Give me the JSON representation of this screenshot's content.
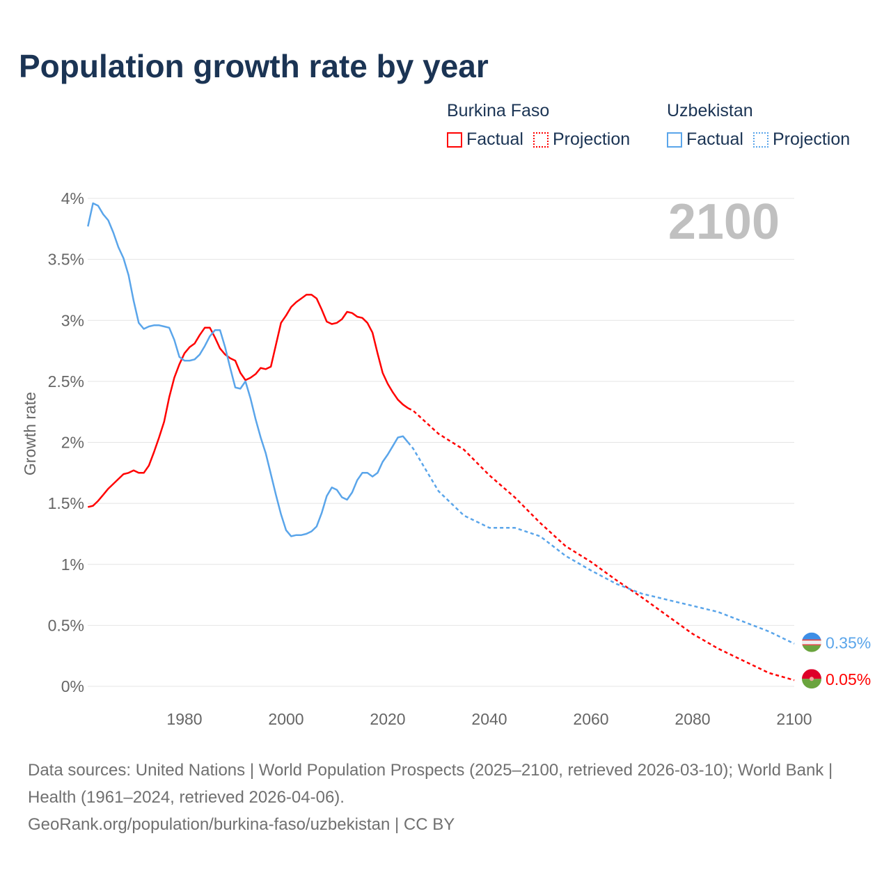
{
  "title": "Population growth rate by year",
  "legend": {
    "groups": [
      {
        "name": "Burkina Faso",
        "color": "#ff0000",
        "factual": "Factual",
        "projection": "Projection"
      },
      {
        "name": "Uzbekistan",
        "color": "#5aa5ea",
        "factual": "Factual",
        "projection": "Projection"
      }
    ]
  },
  "year_display": "2100",
  "end_labels": [
    "0.05%",
    "0.35%"
  ],
  "footer": {
    "line1": "Data sources: United Nations | World Population Prospects (2025–2100, retrieved 2026-03-10); World Bank | Health (1961–2024, retrieved 2026-04-06).",
    "line2": "GeoRank.org/population/burkina-faso/uzbekistan | CC BY"
  },
  "chart_data": {
    "type": "line",
    "title": "Population growth rate by year",
    "xlabel": "",
    "ylabel": "Growth rate",
    "xlim": [
      1961,
      2100
    ],
    "ylim": [
      0,
      4
    ],
    "xticks": [
      1980,
      2000,
      2020,
      2040,
      2060,
      2080,
      2100
    ],
    "yticks": [
      "0%",
      "0.5%",
      "1%",
      "1.5%",
      "2%",
      "2.5%",
      "3%",
      "3.5%",
      "4%"
    ],
    "grid": true,
    "legend_position": "top-right",
    "series": [
      {
        "name": "Burkina Faso",
        "color": "#ff0000",
        "factual_start": 1961,
        "factual": [
          1.47,
          1.48,
          1.52,
          1.57,
          1.62,
          1.66,
          1.7,
          1.74,
          1.75,
          1.77,
          1.75,
          1.75,
          1.81,
          1.92,
          2.04,
          2.17,
          2.37,
          2.53,
          2.64,
          2.73,
          2.78,
          2.81,
          2.88,
          2.94,
          2.94,
          2.86,
          2.77,
          2.72,
          2.69,
          2.67,
          2.57,
          2.51,
          2.53,
          2.56,
          2.61,
          2.6,
          2.62,
          2.8,
          2.98,
          3.04,
          3.11,
          3.15,
          3.18,
          3.21,
          3.21,
          3.18,
          3.09,
          2.99,
          2.97,
          2.98,
          3.01,
          3.07,
          3.06,
          3.03,
          3.02,
          2.98,
          2.9,
          2.73,
          2.57,
          2.48,
          2.41,
          2.35,
          2.31,
          2.28
        ],
        "projection_x": [
          2024,
          2025,
          2030,
          2035,
          2040,
          2045,
          2050,
          2055,
          2060,
          2065,
          2070,
          2075,
          2080,
          2085,
          2090,
          2095,
          2100
        ],
        "projection": [
          2.28,
          2.26,
          2.07,
          1.94,
          1.73,
          1.55,
          1.34,
          1.15,
          1.02,
          0.87,
          0.73,
          0.58,
          0.43,
          0.31,
          0.21,
          0.11,
          0.05
        ]
      },
      {
        "name": "Uzbekistan",
        "color": "#5aa5ea",
        "factual_start": 1961,
        "factual": [
          3.77,
          3.96,
          3.94,
          3.87,
          3.82,
          3.72,
          3.6,
          3.51,
          3.37,
          3.16,
          2.98,
          2.93,
          2.95,
          2.96,
          2.96,
          2.95,
          2.94,
          2.84,
          2.7,
          2.67,
          2.67,
          2.68,
          2.72,
          2.79,
          2.87,
          2.92,
          2.92,
          2.78,
          2.61,
          2.45,
          2.44,
          2.5,
          2.36,
          2.19,
          2.04,
          1.91,
          1.74,
          1.57,
          1.41,
          1.28,
          1.23,
          1.24,
          1.24,
          1.25,
          1.27,
          1.31,
          1.42,
          1.56,
          1.63,
          1.61,
          1.55,
          1.53,
          1.59,
          1.69,
          1.75,
          1.75,
          1.72,
          1.75,
          1.84,
          1.9,
          1.97,
          2.04,
          2.05,
          2.0
        ],
        "projection_x": [
          2024,
          2025,
          2030,
          2035,
          2040,
          2045,
          2050,
          2055,
          2060,
          2065,
          2070,
          2075,
          2080,
          2085,
          2090,
          2095,
          2100
        ],
        "projection": [
          2.0,
          1.95,
          1.6,
          1.4,
          1.3,
          1.3,
          1.23,
          1.07,
          0.95,
          0.84,
          0.76,
          0.71,
          0.66,
          0.61,
          0.53,
          0.45,
          0.35
        ]
      }
    ]
  }
}
